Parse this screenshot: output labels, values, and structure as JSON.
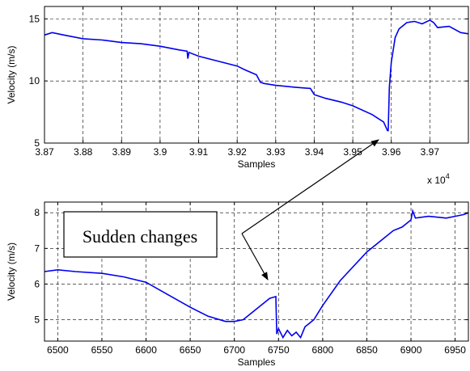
{
  "chart_data": [
    {
      "type": "line",
      "title": "",
      "xlabel": "Samples",
      "ylabel": "Velocity (m/s)",
      "x_multiplier_label": "x 10",
      "x_multiplier_exp": "4",
      "xlim": [
        3.87,
        3.98
      ],
      "ylim": [
        5,
        16
      ],
      "grid": true,
      "x_ticks": [
        3.87,
        3.88,
        3.89,
        3.9,
        3.91,
        3.92,
        3.93,
        3.94,
        3.95,
        3.96,
        3.97
      ],
      "x_tick_labels": [
        "3.87",
        "3.88",
        "3.89",
        "3.9",
        "3.91",
        "3.92",
        "3.93",
        "3.94",
        "3.95",
        "3.96",
        "3.97"
      ],
      "y_ticks": [
        5,
        10,
        15
      ],
      "y_tick_labels": [
        "5",
        "10",
        "15"
      ],
      "line_color": "#0000ee",
      "series": [
        {
          "x": [
            3.87,
            3.872,
            3.875,
            3.88,
            3.885,
            3.89,
            3.895,
            3.9,
            3.905,
            3.907,
            3.9072,
            3.9075,
            3.91,
            3.915,
            3.92,
            3.922,
            3.925,
            3.926,
            3.927,
            3.93,
            3.935,
            3.939,
            3.94,
            3.943,
            3.947,
            3.95,
            3.955,
            3.958,
            3.959,
            3.9592,
            3.9595,
            3.96,
            3.961,
            3.962,
            3.964,
            3.966,
            3.968,
            3.97,
            3.971,
            3.972,
            3.975,
            3.978,
            3.98
          ],
          "y": [
            13.7,
            13.9,
            13.7,
            13.4,
            13.3,
            13.1,
            13.0,
            12.8,
            12.5,
            12.4,
            11.8,
            12.3,
            12.0,
            11.6,
            11.2,
            10.9,
            10.5,
            9.9,
            9.8,
            9.65,
            9.5,
            9.4,
            8.9,
            8.6,
            8.3,
            8.0,
            7.3,
            6.7,
            6.0,
            6.0,
            9.5,
            11.5,
            13.5,
            14.2,
            14.7,
            14.8,
            14.6,
            14.9,
            14.7,
            14.3,
            14.4,
            13.9,
            13.8
          ]
        }
      ]
    },
    {
      "type": "line",
      "title": "",
      "xlabel": "Samples",
      "ylabel": "Velocity (m/s)",
      "xlim": [
        6485,
        6965
      ],
      "ylim": [
        4.4,
        8.3
      ],
      "grid": true,
      "x_ticks": [
        6500,
        6550,
        6600,
        6650,
        6700,
        6750,
        6800,
        6850,
        6900,
        6950
      ],
      "x_tick_labels": [
        "6500",
        "6550",
        "6600",
        "6650",
        "6700",
        "6750",
        "6800",
        "6850",
        "6900",
        "6950"
      ],
      "y_ticks": [
        5,
        6,
        7,
        8
      ],
      "y_tick_labels": [
        "5",
        "6",
        "7",
        "8"
      ],
      "line_color": "#0000ee",
      "series": [
        {
          "x": [
            6485,
            6500,
            6520,
            6550,
            6575,
            6600,
            6625,
            6650,
            6670,
            6690,
            6700,
            6710,
            6720,
            6730,
            6740,
            6747,
            6748,
            6750,
            6755,
            6760,
            6765,
            6770,
            6775,
            6780,
            6790,
            6800,
            6820,
            6850,
            6870,
            6880,
            6890,
            6895,
            6900,
            6902,
            6905,
            6920,
            6940,
            6950,
            6960,
            6965
          ],
          "y": [
            6.35,
            6.4,
            6.35,
            6.3,
            6.2,
            6.05,
            5.7,
            5.35,
            5.1,
            4.95,
            4.95,
            5.0,
            5.2,
            5.4,
            5.6,
            5.65,
            4.6,
            4.75,
            4.5,
            4.7,
            4.55,
            4.65,
            4.5,
            4.8,
            5.0,
            5.4,
            6.1,
            6.9,
            7.3,
            7.5,
            7.6,
            7.7,
            7.8,
            8.05,
            7.85,
            7.9,
            7.85,
            7.9,
            7.95,
            8.0
          ]
        }
      ]
    }
  ],
  "annotation": {
    "text": "Sudden changes"
  }
}
